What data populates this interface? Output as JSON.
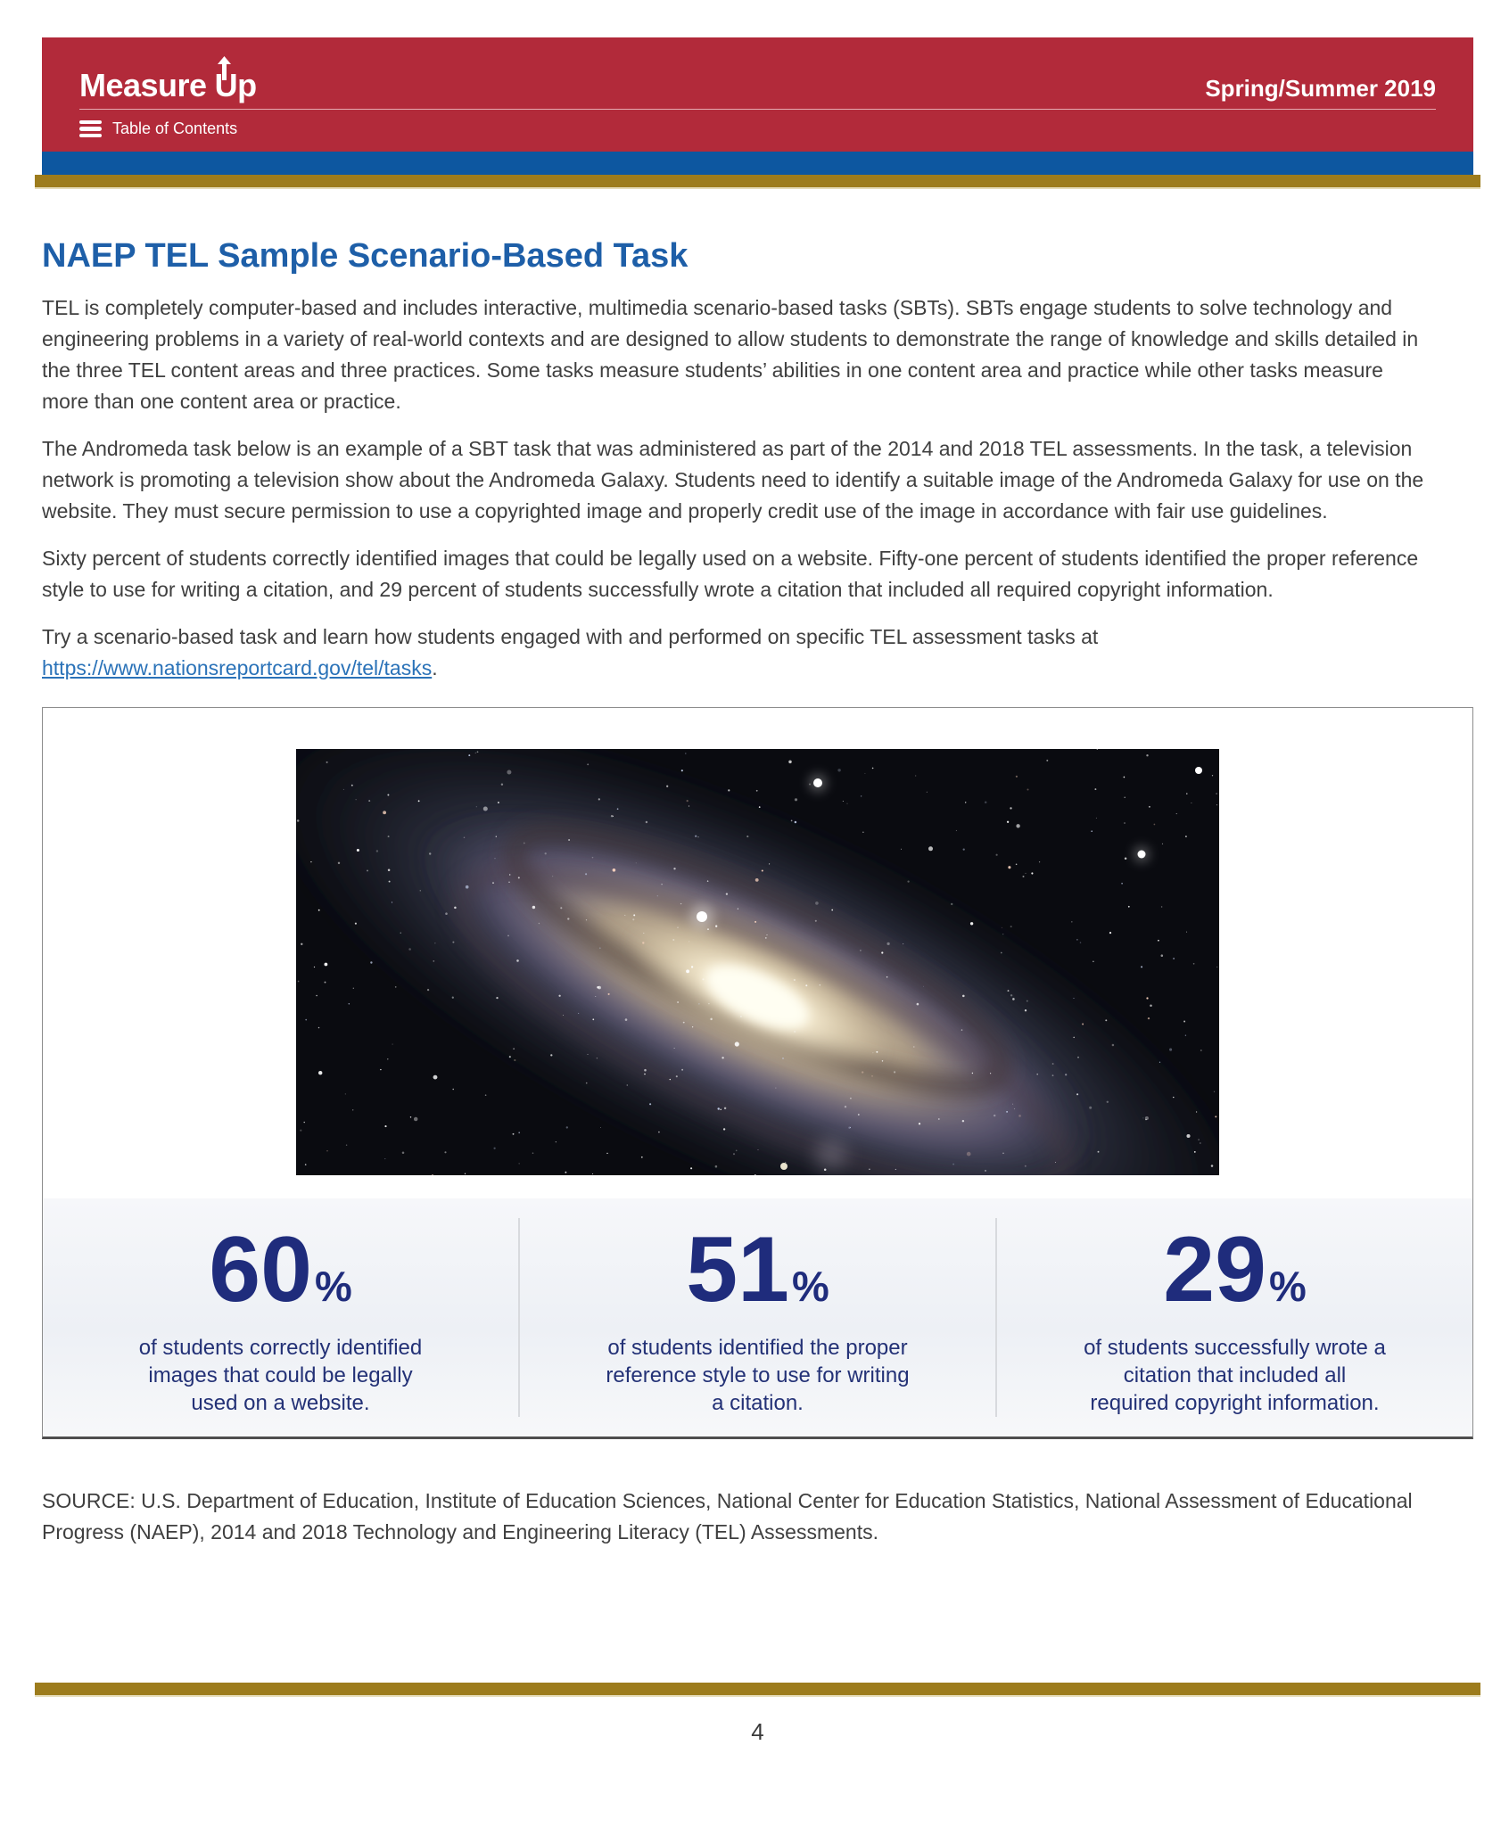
{
  "header": {
    "logo_measure": "Measure",
    "logo_up": "Up",
    "issue": "Spring/Summer 2019",
    "toc_label": "Table of Contents"
  },
  "article": {
    "title": "NAEP TEL Sample Scenario-Based Task",
    "paragraphs": [
      "TEL is completely computer-based and includes interactive, multimedia scenario-based tasks (SBTs). SBTs engage students to solve technology and engineering problems in a variety of real-world contexts and are designed to allow students to demonstrate the range of knowledge and skills detailed in the three TEL content areas and three practices. Some tasks measure students’ abilities in one content area and practice while other tasks measure more than one content area or practice.",
      "The Andromeda task below is an example of a SBT task that was administered as part of the 2014 and 2018 TEL assessments. In the task, a television network is promoting a television show about the Andromeda Galaxy. Students need to identify a suitable image of the Andromeda Galaxy for use on the website. They must secure permission to use a copyrighted image and properly credit use of the image in accordance with fair use guidelines.",
      "Sixty percent of students correctly identified images that could be legally used on a website. Fifty-one percent of students identified the proper reference style to use for writing a citation, and 29 percent of students successfully wrote a citation that included all required copyright information."
    ],
    "cta_text": "Try a scenario-based task and learn how students engaged with and performed on specific TEL assessment tasks at ",
    "cta_link_text": "https://www.nationsreportcard.gov/tel/tasks",
    "cta_suffix": "."
  },
  "figure": {
    "image_name": "andromeda-galaxy-photo",
    "stats": [
      {
        "value": "60",
        "unit": "%",
        "lines": [
          "of students correctly identified",
          "images that could be legally",
          "used on a website."
        ]
      },
      {
        "value": "51",
        "unit": "%",
        "lines": [
          "of students identified the proper",
          "reference style to use for writing",
          "a citation."
        ]
      },
      {
        "value": "29",
        "unit": "%",
        "lines": [
          "of students successfully wrote a",
          "citation that included all",
          "required copyright information."
        ]
      }
    ]
  },
  "source_note": "SOURCE: U.S. Department of Education, Institute of Education Sciences, National Center for Education Statistics, National Assessment of Educational Progress (NAEP), 2014 and 2018 Technology and Engineering Literacy (TEL) Assessments.",
  "page_number": "4",
  "colors": {
    "header_red": "#b22a3a",
    "stripe_blue": "#0d57a0",
    "stripe_gold": "#9d7c1d",
    "heading_blue": "#1e5fa8",
    "link_blue": "#2a72b8",
    "stat_navy": "#1f2c7c",
    "body_gray": "#3f3f3f"
  },
  "icons": {
    "menu": "hamburger-icon",
    "logo_arrow": "up-arrow-icon"
  }
}
